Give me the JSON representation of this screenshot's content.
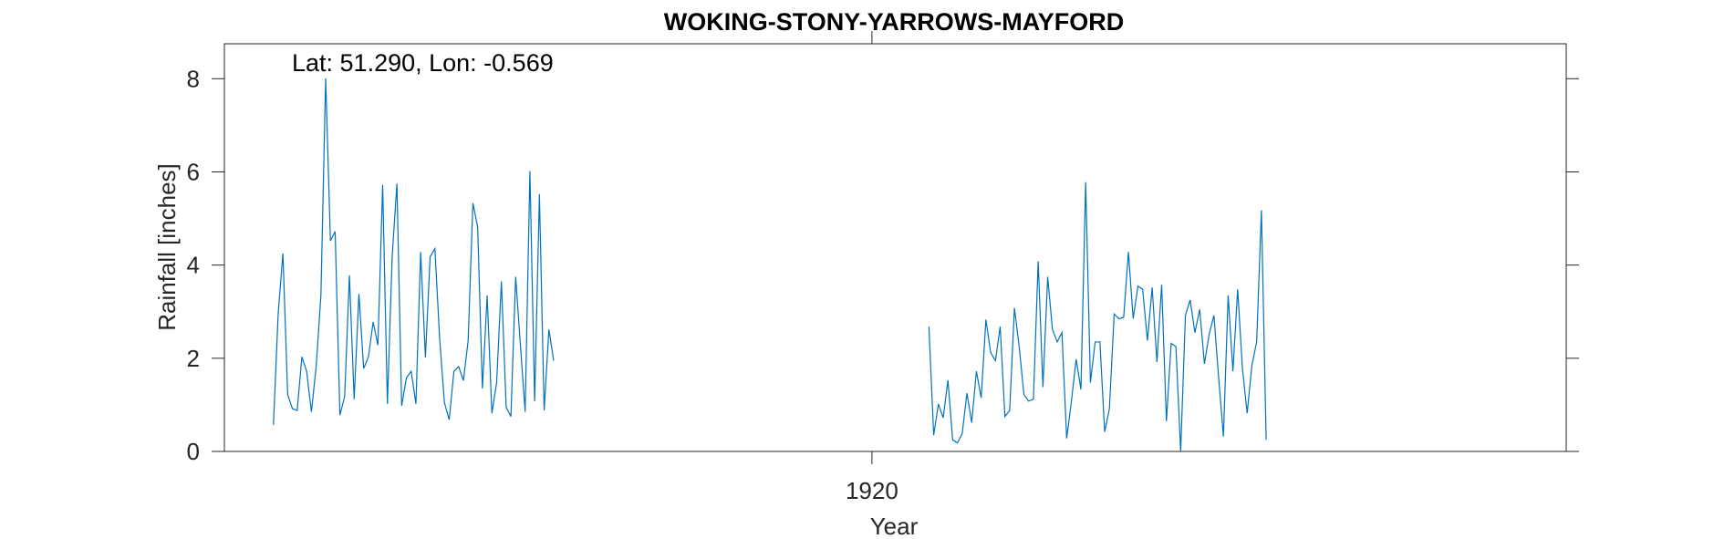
{
  "chart_data": {
    "type": "line",
    "title": "WOKING-STONY-YARROWS-MAYFORD",
    "xlabel": "Year",
    "ylabel": "Rainfall [inches]",
    "annotation": "Lat: 51.290, Lon: -0.569",
    "ylim": [
      0,
      8.75
    ],
    "xlim": [
      1908.64,
      1932.18
    ],
    "yticks": [
      0,
      2,
      4,
      6,
      8
    ],
    "xticks": [
      1920
    ],
    "grid": false,
    "line_color": "#0072BD",
    "series": [
      {
        "segments": [
          {
            "x_start": 1909.5,
            "x_step": 0.08333,
            "values": [
              0.57,
              2.95,
              4.25,
              1.22,
              0.92,
              0.88,
              2.03,
              1.72,
              0.85,
              1.82,
              3.35,
              8.01,
              4.52,
              4.72,
              0.78,
              1.18,
              3.78,
              1.12,
              3.38,
              1.78,
              2.03,
              2.78,
              2.28,
              5.72,
              1.02,
              4.18,
              5.75,
              0.98,
              1.58,
              1.72,
              1.02,
              4.28,
              2.02,
              4.18,
              4.35,
              2.42,
              1.05,
              0.68,
              1.72,
              1.82,
              1.52,
              2.38,
              5.33,
              4.82,
              1.35,
              3.35,
              0.82,
              1.48,
              3.65,
              0.95,
              0.75,
              3.75,
              2.28,
              0.85,
              6.02,
              1.08,
              5.52,
              0.88,
              2.62,
              1.95
            ]
          },
          {
            "x_start": 1921.0,
            "x_step": 0.08333,
            "values": [
              2.68,
              0.35,
              1.02,
              0.72,
              1.53,
              0.25,
              0.18,
              0.38,
              1.25,
              0.62,
              1.72,
              1.15,
              2.83,
              2.12,
              1.95,
              2.68,
              0.75,
              0.88,
              3.08,
              2.25,
              1.22,
              1.08,
              1.12,
              4.08,
              1.38,
              3.75,
              2.62,
              2.35,
              2.55,
              0.28,
              1.08,
              1.98,
              1.33,
              5.78,
              1.48,
              2.35,
              2.35,
              0.42,
              0.92,
              2.95,
              2.85,
              2.88,
              4.28,
              2.85,
              3.55,
              3.48,
              2.38,
              3.52,
              1.92,
              3.58,
              0.65,
              2.32,
              2.25,
              0.0,
              2.92,
              3.25,
              2.55,
              3.05,
              1.88,
              2.52,
              2.92,
              1.58,
              0.32,
              3.35,
              1.72,
              3.48,
              1.78,
              0.82,
              1.85,
              2.35,
              5.18,
              0.25
            ]
          }
        ]
      }
    ]
  }
}
